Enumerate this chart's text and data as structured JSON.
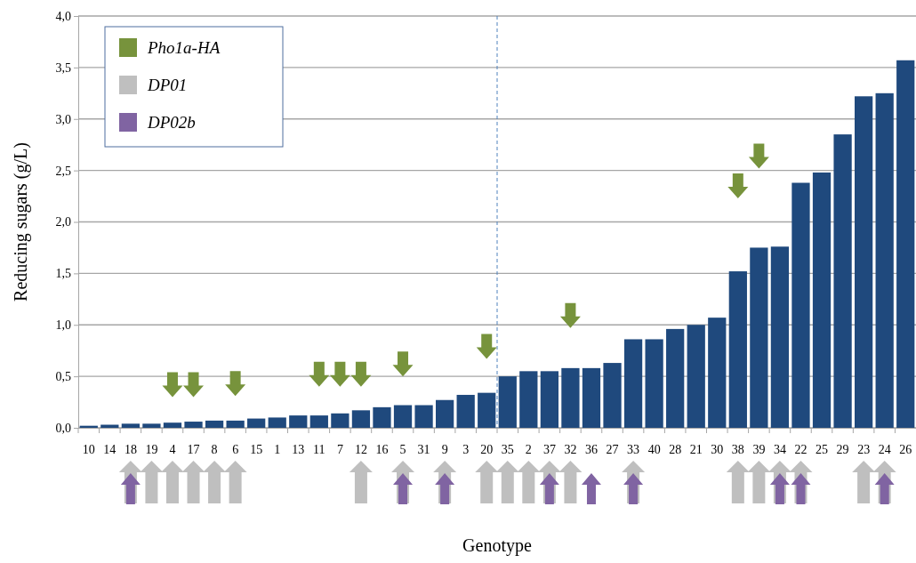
{
  "chart_data": {
    "type": "bar",
    "xlabel": "Genotype",
    "ylabel": "Reducing sugars (g/L)",
    "categories": [
      "10",
      "14",
      "18",
      "19",
      "4",
      "17",
      "8",
      "6",
      "15",
      "1",
      "13",
      "11",
      "7",
      "12",
      "16",
      "5",
      "31",
      "9",
      "3",
      "20",
      "35",
      "2",
      "37",
      "32",
      "36",
      "27",
      "33",
      "40",
      "28",
      "21",
      "30",
      "38",
      "39",
      "34",
      "22",
      "25",
      "29",
      "23",
      "24",
      "26"
    ],
    "series": [
      {
        "color": "#1f497d",
        "values": [
          0.02,
          0.03,
          0.04,
          0.04,
          0.05,
          0.06,
          0.07,
          0.07,
          0.09,
          0.1,
          0.12,
          0.12,
          0.14,
          0.17,
          0.2,
          0.22,
          0.22,
          0.27,
          0.32,
          0.34,
          0.5,
          0.55,
          0.55,
          0.58,
          0.58,
          0.63,
          0.86,
          0.86,
          0.96,
          1.0,
          1.07,
          1.52,
          1.75,
          1.76,
          2.38,
          2.48,
          2.85,
          3.22,
          3.25,
          3.57
        ]
      },
      {
        "type": "scatter",
        "name": "Pho1a-HA",
        "color": "#77933c",
        "x": [
          "4",
          "17",
          "6",
          "11",
          "7",
          "12",
          "5",
          "20",
          "32",
          "38",
          "39"
        ],
        "values": [
          0.42,
          0.42,
          0.43,
          0.52,
          0.52,
          0.52,
          0.62,
          0.79,
          1.09,
          2.35,
          2.64
        ]
      },
      {
        "type": "scatter",
        "name": "DP01",
        "color": "#bfbfbf",
        "x": [
          "18",
          "19",
          "4",
          "17",
          "8",
          "6",
          "12",
          "5",
          "9",
          "20",
          "35",
          "2",
          "37",
          "32",
          "33",
          "38",
          "39",
          "34",
          "22",
          "23",
          "24"
        ],
        "values": [
          null,
          null,
          null,
          null,
          null,
          null,
          null,
          null,
          null,
          null,
          null,
          null,
          null,
          null,
          null,
          null,
          null,
          null,
          null,
          null,
          null
        ]
      },
      {
        "type": "scatter",
        "name": "DP02b",
        "color": "#8064a2",
        "x": [
          "18",
          "5",
          "9",
          "37",
          "36",
          "33",
          "34",
          "22",
          "24"
        ],
        "values": [
          null,
          null,
          null,
          null,
          null,
          null,
          null,
          null,
          null
        ]
      }
    ],
    "ylim": [
      0,
      4
    ],
    "yticks": [
      {
        "value": 0,
        "label": "0,0"
      },
      {
        "value": 0.5,
        "label": "0,5"
      },
      {
        "value": 1,
        "label": "1,0"
      },
      {
        "value": 1.5,
        "label": "1,5"
      },
      {
        "value": 2,
        "label": "2,0"
      },
      {
        "value": 2.5,
        "label": "2,5"
      },
      {
        "value": 3,
        "label": "3,0"
      },
      {
        "value": 3.5,
        "label": "3,5"
      },
      {
        "value": 4,
        "label": "4,0"
      }
    ],
    "grid": "y",
    "legend": "top left",
    "ref_lines": [
      {
        "axis": "x",
        "value": "35",
        "color": "#4f81bd",
        "line_style": "dashed"
      }
    ]
  }
}
